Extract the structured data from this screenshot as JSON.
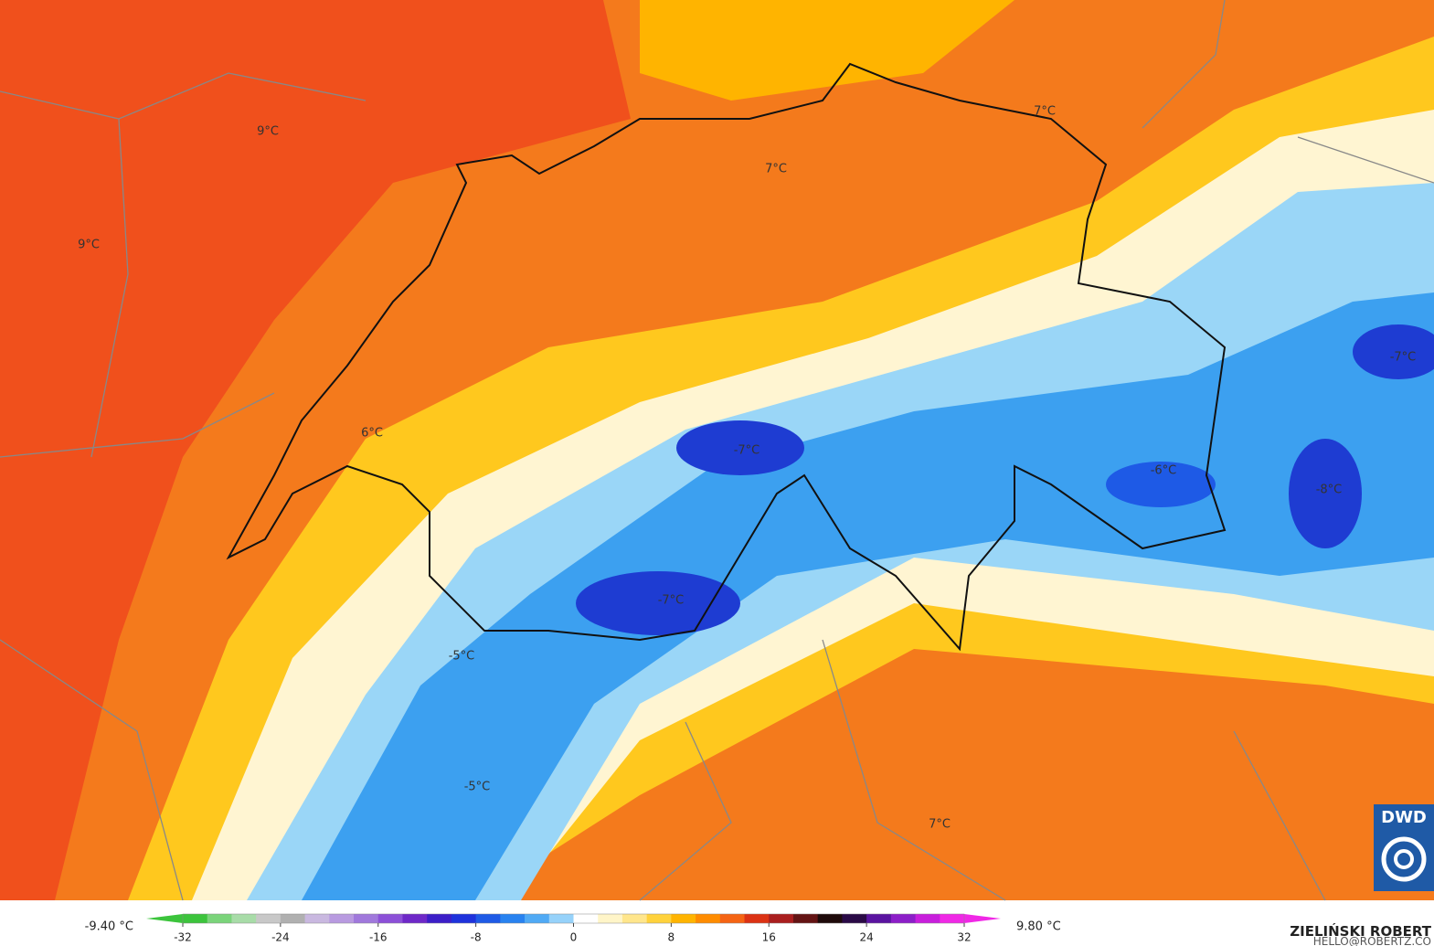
{
  "map": {
    "labels": [
      "9°C",
      "9°C",
      "7°C",
      "7°C",
      "6°C",
      "-7°C",
      "-7°C",
      "-6°C",
      "-8°C",
      "-7°C",
      "-5°C",
      "-5°C",
      "7°C"
    ],
    "logo": "DWD"
  },
  "colorbar": {
    "min_label": "-9.40 °C",
    "max_label": "9.80 °C",
    "lim": [
      -32,
      32
    ],
    "ticks": [
      -32,
      -24,
      -16,
      -8,
      0,
      8,
      16,
      24,
      32
    ],
    "colors": [
      "#3cc43c",
      "#7ad47a",
      "#a8dca8",
      "#c8c8c8",
      "#b0b0b0",
      "#c9b8e0",
      "#b89ae0",
      "#a078dc",
      "#8c50d8",
      "#6e28c8",
      "#3c1ec8",
      "#1e32dc",
      "#1e5ae6",
      "#2882f0",
      "#50aaf5",
      "#96d2fa",
      "#ffffff",
      "#fff5c8",
      "#ffe68c",
      "#ffd23c",
      "#ffb400",
      "#ff8c00",
      "#f56414",
      "#dc3214",
      "#aa1e1e",
      "#641414",
      "#1e0a0a",
      "#2a0a46",
      "#5a14a0",
      "#8c1ec8",
      "#c81edc",
      "#f028e6"
    ]
  },
  "credit": {
    "name": "ZIELIŃSKI ROBERT",
    "contact": "HELLO@ROBERTZ.CO"
  }
}
